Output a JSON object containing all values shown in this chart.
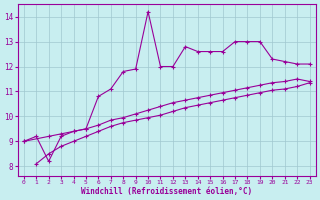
{
  "xlabel": "Windchill (Refroidissement éolien,°C)",
  "background_color": "#c8eef0",
  "grid_color": "#a0c8d0",
  "line_color": "#990099",
  "x_ticks": [
    0,
    1,
    2,
    3,
    4,
    5,
    6,
    7,
    8,
    9,
    10,
    11,
    12,
    13,
    14,
    15,
    16,
    17,
    18,
    19,
    20,
    21,
    22,
    23
  ],
  "yticks": [
    8,
    9,
    10,
    11,
    12,
    13,
    14
  ],
  "ylim": [
    7.6,
    14.5
  ],
  "xlim": [
    -0.5,
    23.5
  ],
  "series1_x": [
    0,
    1,
    2,
    3,
    4,
    5,
    6,
    7,
    8,
    9,
    10,
    11,
    12,
    13,
    14,
    15,
    16,
    17,
    18,
    19,
    20,
    21,
    22,
    23
  ],
  "series1_y": [
    9.0,
    9.2,
    8.2,
    9.2,
    9.4,
    9.5,
    10.8,
    11.1,
    11.8,
    11.9,
    14.2,
    12.0,
    12.0,
    12.8,
    12.6,
    12.6,
    12.6,
    13.0,
    13.0,
    13.0,
    12.3,
    12.2,
    12.1,
    12.1
  ],
  "series2_x": [
    0,
    2,
    3,
    4,
    5,
    6,
    7,
    8,
    9,
    10,
    11,
    12,
    13,
    14,
    15,
    16,
    17,
    18,
    19,
    20,
    21,
    22,
    23
  ],
  "series2_y": [
    9.0,
    9.2,
    9.3,
    9.4,
    9.5,
    9.65,
    9.85,
    9.95,
    10.1,
    10.25,
    10.4,
    10.55,
    10.65,
    10.75,
    10.85,
    10.95,
    11.05,
    11.15,
    11.25,
    11.35,
    11.4,
    11.5,
    11.4
  ],
  "series3_x": [
    1,
    2,
    3,
    4,
    5,
    6,
    7,
    8,
    9,
    10,
    11,
    12,
    13,
    14,
    15,
    16,
    17,
    18,
    19,
    20,
    21,
    22,
    23
  ],
  "series3_y": [
    8.1,
    8.5,
    8.8,
    9.0,
    9.2,
    9.4,
    9.6,
    9.75,
    9.85,
    9.95,
    10.05,
    10.2,
    10.35,
    10.45,
    10.55,
    10.65,
    10.75,
    10.85,
    10.95,
    11.05,
    11.1,
    11.2,
    11.35
  ]
}
